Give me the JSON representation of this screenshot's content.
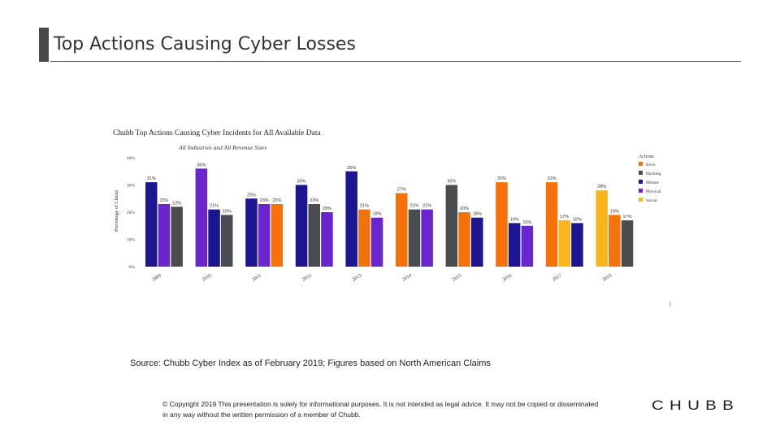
{
  "page": {
    "title": "Top Actions Causing Cyber Losses",
    "source": "Source: Chubb Cyber Index as of February 2019; Figures based on North American Claims",
    "copyright": "© Copyright 2019 This presentation is solely for informational purposes. It is not intended as legal advice. It may not be copied or disseminated in any way without the written permission of a member of Chubb.",
    "logo_text": "CHUBB"
  },
  "chart_data": {
    "type": "bar",
    "title": "Chubb Top Actions Causing Cyber Incidents for All Available Data",
    "subtitle": "All Industries and All Revenue Sizes",
    "ylabel": "Percentage of Claims",
    "xlabel": "",
    "ylim": [
      0,
      40
    ],
    "yticks": [
      "0%",
      "10%",
      "20%",
      "30%",
      "40%"
    ],
    "grid": false,
    "legend_title": "Actions",
    "legend_position": "right",
    "groups": [
      {
        "year": "2009",
        "bars": [
          {
            "series": "Misuse",
            "value": 31,
            "label": "31%"
          },
          {
            "series": "Physical",
            "value": 23,
            "label": "23%"
          },
          {
            "series": "Hacking",
            "value": 22,
            "label": "22%"
          }
        ]
      },
      {
        "year": "2010",
        "bars": [
          {
            "series": "Physical",
            "value": 36,
            "label": "36%"
          },
          {
            "series": "Misuse",
            "value": 21,
            "label": "21%"
          },
          {
            "series": "Hacking",
            "value": 19,
            "label": "19%"
          }
        ]
      },
      {
        "year": "2011",
        "bars": [
          {
            "series": "Misuse",
            "value": 25,
            "label": "25%"
          },
          {
            "series": "Physical",
            "value": 23,
            "label": "23%"
          },
          {
            "series": "Error",
            "value": 23,
            "label": "23%"
          }
        ]
      },
      {
        "year": "2012",
        "bars": [
          {
            "series": "Misuse",
            "value": 30,
            "label": "30%"
          },
          {
            "series": "Hacking",
            "value": 23,
            "label": "23%"
          },
          {
            "series": "Physical",
            "value": 20,
            "label": "20%"
          }
        ]
      },
      {
        "year": "2013",
        "bars": [
          {
            "series": "Misuse",
            "value": 35,
            "label": "35%"
          },
          {
            "series": "Error",
            "value": 21,
            "label": "21%"
          },
          {
            "series": "Physical",
            "value": 18,
            "label": "18%"
          }
        ]
      },
      {
        "year": "2014",
        "bars": [
          {
            "series": "Error",
            "value": 27,
            "label": "27%"
          },
          {
            "series": "Hacking",
            "value": 21,
            "label": "21%"
          },
          {
            "series": "Physical",
            "value": 21,
            "label": "21%"
          }
        ]
      },
      {
        "year": "2015",
        "bars": [
          {
            "series": "Hacking",
            "value": 30,
            "label": "30%"
          },
          {
            "series": "Error",
            "value": 20,
            "label": "20%"
          },
          {
            "series": "Misuse",
            "value": 18,
            "label": "18%"
          }
        ]
      },
      {
        "year": "2016",
        "bars": [
          {
            "series": "Error",
            "value": 31,
            "label": "31%"
          },
          {
            "series": "Misuse",
            "value": 16,
            "label": "16%"
          },
          {
            "series": "Physical",
            "value": 15,
            "label": "15%"
          }
        ]
      },
      {
        "year": "2017",
        "bars": [
          {
            "series": "Error",
            "value": 31,
            "label": "31%"
          },
          {
            "series": "Social",
            "value": 17,
            "label": "17%"
          },
          {
            "series": "Misuse",
            "value": 16,
            "label": "16%"
          }
        ]
      },
      {
        "year": "2018",
        "bars": [
          {
            "series": "Social",
            "value": 28,
            "label": "28%"
          },
          {
            "series": "Error",
            "value": 19,
            "label": "19%"
          },
          {
            "series": "Hacking",
            "value": 17,
            "label": "17%"
          }
        ]
      }
    ],
    "legend": [
      {
        "name": "Error",
        "color": "#f5720a"
      },
      {
        "name": "Hacking",
        "color": "#4a4d50"
      },
      {
        "name": "Misuse",
        "color": "#1c1690"
      },
      {
        "name": "Physical",
        "color": "#6a26cc"
      },
      {
        "name": "Social",
        "color": "#f8b51c"
      }
    ]
  }
}
